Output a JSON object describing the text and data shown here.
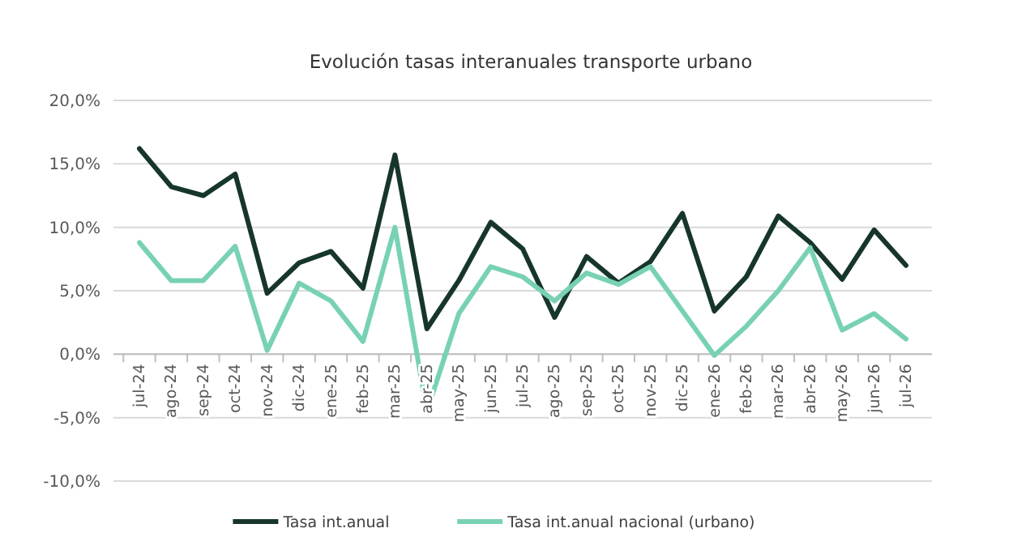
{
  "chart_data": {
    "type": "line",
    "title": "Evolución tasas interanuales transporte urbano",
    "categories": [
      "jul-24",
      "ago-24",
      "sep-24",
      "oct-24",
      "nov-24",
      "dic-24",
      "ene-25",
      "feb-25",
      "mar-25",
      "abr-25",
      "may-25",
      "jun-25",
      "jul-25",
      "ago-25",
      "sep-25",
      "oct-25",
      "nov-25",
      "dic-25",
      "ene-26",
      "feb-26",
      "mar-26",
      "abr-26",
      "may-26",
      "jun-26",
      "jul-26"
    ],
    "series": [
      {
        "name": "Tasa int.anual",
        "color": "#17362a",
        "values": [
          16.2,
          13.2,
          12.5,
          14.2,
          4.8,
          7.2,
          8.1,
          5.2,
          15.7,
          2.0,
          5.8,
          10.4,
          8.3,
          2.9,
          7.7,
          5.6,
          7.3,
          11.1,
          3.4,
          6.1,
          10.9,
          8.8,
          5.9,
          9.8,
          7.0
        ]
      },
      {
        "name": "Tasa int.anual nacional (urbano)",
        "color": "#78d1b5",
        "values": [
          8.8,
          5.8,
          5.8,
          8.5,
          0.3,
          5.6,
          4.2,
          1.0,
          10.0,
          -4.5,
          3.2,
          6.9,
          6.1,
          4.2,
          6.4,
          5.5,
          6.9,
          3.4,
          -0.1,
          2.2,
          5.0,
          8.4,
          1.9,
          3.2,
          1.2
        ]
      }
    ],
    "ylim": [
      -10,
      20
    ],
    "yticks": [
      {
        "value": -10,
        "label": "-10,0%"
      },
      {
        "value": -5,
        "label": "-5,0%"
      },
      {
        "value": 0,
        "label": "0,0%"
      },
      {
        "value": 5,
        "label": "5,0%"
      },
      {
        "value": 10,
        "label": "10,0%"
      },
      {
        "value": 15,
        "label": "15,0%"
      },
      {
        "value": 20,
        "label": "20,0%"
      }
    ],
    "grid": "y",
    "legend": "bottom",
    "marker": "none",
    "line_style": "solid"
  }
}
